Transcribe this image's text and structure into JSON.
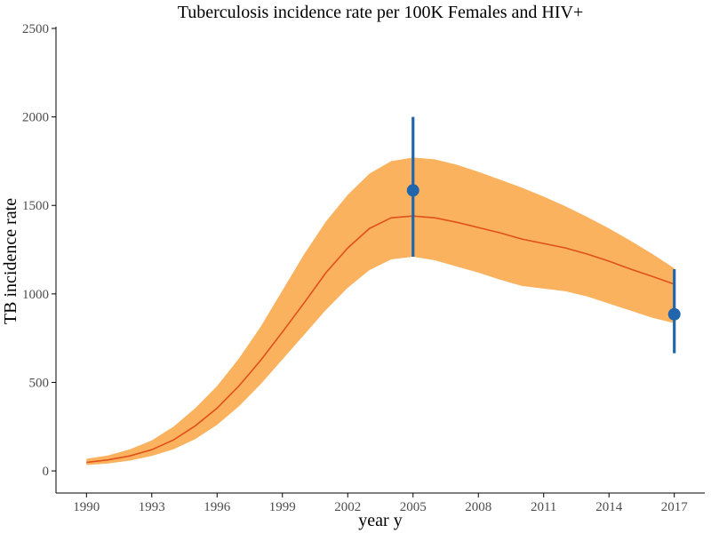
{
  "chart_data": {
    "type": "line",
    "title": "Tuberculosis incidence rate per 100K Females and HIV+",
    "xlabel": "year y",
    "ylabel": "TB incidence rate",
    "xlim": [
      1988.6,
      2018.4
    ],
    "ylim": [
      -125,
      2510
    ],
    "xticks": [
      1990,
      1993,
      1996,
      1999,
      2002,
      2005,
      2008,
      2011,
      2014,
      2017
    ],
    "xtick_labels": [
      "1990",
      "1993",
      "1996",
      "1999",
      "2002",
      "2005",
      "2008",
      "2011",
      "2014",
      "2017"
    ],
    "yticks": [
      0,
      500,
      1000,
      1500,
      2000,
      2500
    ],
    "ytick_labels": [
      "0",
      "500",
      "1000",
      "1500",
      "2000",
      "2500"
    ],
    "grid": false,
    "colors": {
      "band": "#fbb25e",
      "line": "#e0501a",
      "points": "#2166ac",
      "axis": "#000000"
    },
    "series": [
      {
        "kind": "line_with_band",
        "x": [
          1990,
          1991,
          1992,
          1993,
          1994,
          1995,
          1996,
          1997,
          1998,
          1999,
          2000,
          2001,
          2002,
          2003,
          2004,
          2005,
          2006,
          2007,
          2008,
          2009,
          2010,
          2011,
          2012,
          2013,
          2014,
          2015,
          2016,
          2017
        ],
        "y": [
          48,
          62,
          85,
          120,
          175,
          255,
          355,
          480,
          625,
          785,
          950,
          1120,
          1260,
          1370,
          1430,
          1440,
          1430,
          1405,
          1375,
          1345,
          1310,
          1285,
          1260,
          1225,
          1185,
          1140,
          1098,
          1055
        ],
        "lower": [
          33,
          42,
          58,
          85,
          122,
          180,
          260,
          365,
          490,
          630,
          770,
          910,
          1035,
          1135,
          1195,
          1210,
          1190,
          1155,
          1120,
          1080,
          1045,
          1030,
          1015,
          985,
          945,
          905,
          865,
          835
        ],
        "upper": [
          68,
          88,
          122,
          172,
          250,
          355,
          480,
          635,
          815,
          1020,
          1225,
          1410,
          1560,
          1680,
          1750,
          1770,
          1760,
          1730,
          1690,
          1645,
          1600,
          1550,
          1495,
          1435,
          1370,
          1300,
          1225,
          1145
        ]
      },
      {
        "kind": "points_with_errorbars",
        "x": [
          2005,
          2017
        ],
        "y": [
          1585,
          885
        ],
        "lower": [
          1210,
          665
        ],
        "upper": [
          2000,
          1140
        ]
      }
    ]
  }
}
